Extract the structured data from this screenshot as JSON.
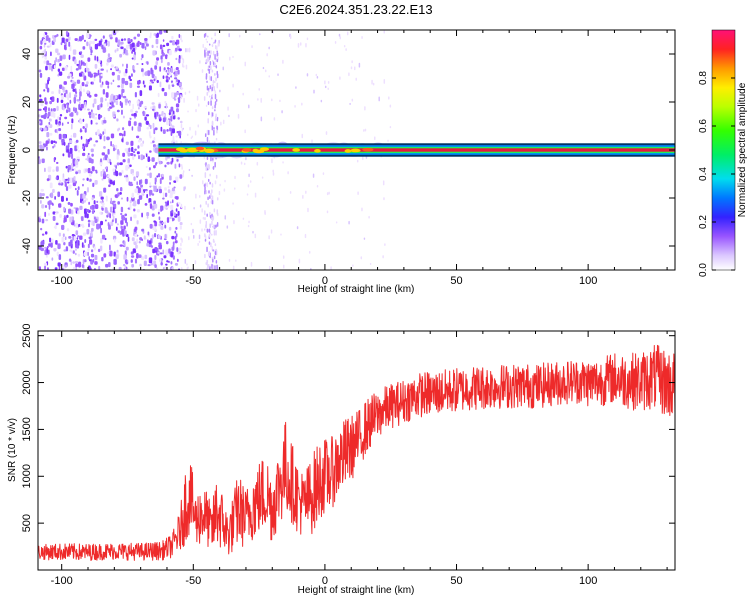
{
  "title": "C2E6.2024.351.23.22.E13",
  "colors": {
    "snr_line": "#ee2a2a",
    "spectrogram_band_edge": "#003366",
    "spectrogram_band_core": "#e8183c"
  },
  "chart_data": [
    {
      "type": "heatmap",
      "name": "spectrogram",
      "xlabel": "Height of straight line (km)",
      "ylabel": "Frequency (Hz)",
      "xlim": [
        -109,
        133
      ],
      "ylim": [
        -50,
        50
      ],
      "xticks": [
        -100,
        -50,
        0,
        50,
        100
      ],
      "yticks": [
        -40,
        -20,
        0,
        20,
        40
      ],
      "grid": false,
      "features": {
        "noise_region_x": [
          -109,
          -55
        ],
        "scattered_noise_x": [
          -55,
          25
        ],
        "noise_stripes_x": [
          -46,
          -41
        ],
        "carrier_frequency_hz": 0,
        "carrier_start_x": -64,
        "carrier_half_width_hz": 2
      },
      "colorbar": {
        "label": "Normalized spectral amplitude",
        "range": [
          0.0,
          1.0
        ],
        "ticks": [
          "0.0",
          "0.2",
          "0.4",
          "0.6",
          "0.8"
        ],
        "tick_values": [
          0.0,
          0.2,
          0.4,
          0.6,
          0.8
        ]
      }
    },
    {
      "type": "line",
      "name": "snr",
      "xlabel": "Height of straight line (km)",
      "ylabel": "SNR (10 * v/v)",
      "xlim": [
        -109,
        133
      ],
      "ylim": [
        0,
        2550
      ],
      "xticks": [
        -100,
        -50,
        0,
        50,
        100
      ],
      "yticks": [
        500,
        1000,
        1500,
        2000,
        2500
      ],
      "grid": false,
      "series": [
        {
          "x": [
            -109,
            -100,
            -90,
            -80,
            -70,
            -62,
            -58,
            -55,
            -53,
            -51,
            -49,
            -47,
            -45,
            -43,
            -41,
            -39,
            -37,
            -35,
            -33,
            -30,
            -27,
            -24,
            -22,
            -20,
            -18,
            -15,
            -12,
            -10,
            -8,
            -5,
            -3,
            -1,
            1,
            3,
            5,
            8,
            10,
            13,
            15,
            18,
            20,
            22,
            25,
            28,
            30,
            33,
            35,
            38,
            40,
            45,
            50,
            55,
            60,
            65,
            70,
            75,
            80,
            85,
            90,
            95,
            100,
            105,
            110,
            115,
            120,
            125,
            130,
            133
          ],
          "mean": [
            190,
            195,
            190,
            200,
            195,
            205,
            260,
            420,
            700,
            780,
            520,
            600,
            560,
            420,
            640,
            520,
            380,
            480,
            650,
            550,
            700,
            800,
            820,
            650,
            850,
            1100,
            900,
            750,
            700,
            800,
            900,
            1000,
            1000,
            1050,
            1150,
            1250,
            1300,
            1400,
            1500,
            1600,
            1650,
            1700,
            1750,
            1780,
            1800,
            1840,
            1860,
            1880,
            1880,
            1900,
            1920,
            1940,
            1950,
            1960,
            1960,
            1970,
            1960,
            1980,
            2000,
            2020,
            2000,
            2010,
            2050,
            2020,
            2010,
            2060,
            1990,
            1970
          ],
          "amp": [
            80,
            90,
            90,
            90,
            95,
            100,
            130,
            220,
            420,
            380,
            300,
            320,
            300,
            250,
            420,
            320,
            250,
            300,
            400,
            320,
            380,
            420,
            420,
            380,
            420,
            520,
            420,
            380,
            350,
            420,
            450,
            420,
            400,
            380,
            380,
            380,
            350,
            320,
            300,
            280,
            260,
            250,
            240,
            240,
            240,
            240,
            240,
            240,
            240,
            240,
            240,
            240,
            240,
            240,
            240,
            240,
            240,
            240,
            240,
            240,
            260,
            260,
            280,
            300,
            320,
            350,
            380,
            380
          ]
        }
      ]
    }
  ]
}
